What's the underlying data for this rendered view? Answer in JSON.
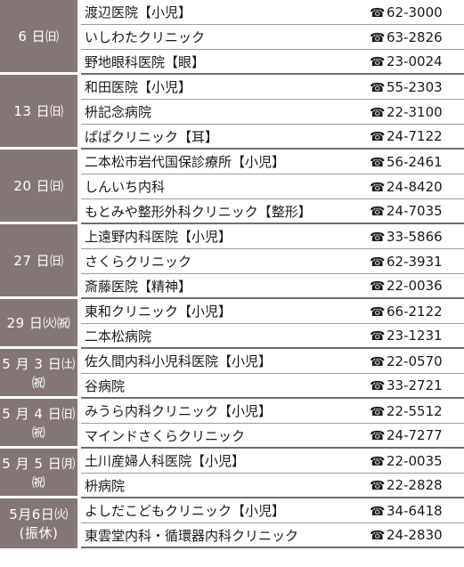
{
  "tel_symbol": "☎",
  "groups": [
    {
      "date": "6 日㈰",
      "rows": [
        {
          "name": "渡辺医院【小児】",
          "phone": "62-3000"
        },
        {
          "name": "いしわたクリニック",
          "phone": "63-2826"
        },
        {
          "name": "野地眼科医院【眼】",
          "phone": "23-0024"
        }
      ]
    },
    {
      "date": "13 日㈰",
      "rows": [
        {
          "name": "和田医院【小児】",
          "phone": "55-2303"
        },
        {
          "name": "枡記念病院",
          "phone": "22-3100"
        },
        {
          "name": "ぱぱクリニック【耳】",
          "phone": "24-7122"
        }
      ]
    },
    {
      "date": "20 日㈰",
      "rows": [
        {
          "name": "二本松市岩代国保診療所【小児】",
          "phone": "56-2461"
        },
        {
          "name": "しんいち内科",
          "phone": "24-8420"
        },
        {
          "name": "もとみや整形外科クリニック【整形】",
          "phone": "24-7035"
        }
      ]
    },
    {
      "date": "27 日㈰",
      "rows": [
        {
          "name": "上遠野内科医院【小児】",
          "phone": "33-5866"
        },
        {
          "name": "さくらクリニック",
          "phone": "62-3931"
        },
        {
          "name": "斎藤医院【精神】",
          "phone": "22-0036"
        }
      ]
    },
    {
      "date": "29 日㈫㈷",
      "rows": [
        {
          "name": "東和クリニック【小児】",
          "phone": "66-2122"
        },
        {
          "name": "二本松病院",
          "phone": "23-1231"
        }
      ]
    },
    {
      "date": "5 月 3 日㈯㈷",
      "rows": [
        {
          "name": "佐久間内科小児科医院【小児】",
          "phone": "22-0570"
        },
        {
          "name": "谷病院",
          "phone": "33-2721"
        }
      ]
    },
    {
      "date": "5 月 4 日㈰㈷",
      "rows": [
        {
          "name": "みうら内科クリニック【小児】",
          "phone": "22-5512"
        },
        {
          "name": "マインドさくらクリニック",
          "phone": "24-7277"
        }
      ]
    },
    {
      "date": "5 月 5 日㈪㈷",
      "rows": [
        {
          "name": "土川産婦人科医院【小児】",
          "phone": "22-0035"
        },
        {
          "name": "枡病院",
          "phone": "22-2828"
        }
      ]
    },
    {
      "date": "5月6日㈫(振休)",
      "rows": [
        {
          "name": "よしだこどもクリニック【小児】",
          "phone": "34-6418"
        },
        {
          "name": "東雲堂内科・循環器内科クリニック",
          "phone": "24-2830"
        }
      ]
    }
  ]
}
